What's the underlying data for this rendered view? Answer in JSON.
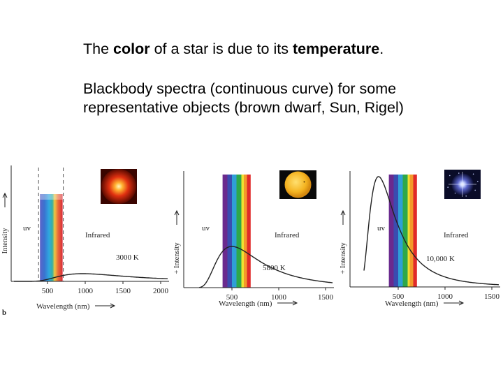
{
  "slide": {
    "line1": {
      "pre": "The ",
      "bold1": "color",
      "mid": " of a star is due to its ",
      "bold2": "temperature",
      "post": "."
    },
    "line2": "Blackbody spectra (continuous curve) for some",
    "line3": "representative objects (brown dwarf, Sun, Rigel)"
  },
  "chart_data": [
    {
      "type": "line",
      "xlabel": "Wavelength (nm)",
      "ylabel": "Intensity",
      "temperature_label": "3000 K",
      "region_labels": [
        "uv",
        "Infrared"
      ],
      "x_ticks": [
        500,
        1000,
        1500,
        2000
      ],
      "xlim": [
        0,
        2100
      ],
      "series": [
        {
          "temperature": 3000
        }
      ],
      "visible_band": [
        400,
        700
      ],
      "panel_label": "b",
      "star_image": "brown-dwarf-glow"
    },
    {
      "type": "line",
      "xlabel": "Wavelength (nm)",
      "ylabel": "+ Intensity",
      "temperature_label": "5800 K",
      "region_labels": [
        "uv",
        "Infrared"
      ],
      "x_ticks": [
        500,
        1000,
        1500
      ],
      "xlim": [
        0,
        1550
      ],
      "series": [
        {
          "temperature": 5800
        }
      ],
      "visible_band": [
        400,
        700
      ],
      "star_image": "sun-disk"
    },
    {
      "type": "line",
      "xlabel": "Wavelength (nm)",
      "ylabel": "+ Intensity",
      "temperature_label": "10,000 K",
      "region_labels": [
        "uv",
        "Infrared"
      ],
      "x_ticks": [
        500,
        1000,
        1500
      ],
      "xlim": [
        0,
        1550
      ],
      "series": [
        {
          "temperature": 10000
        }
      ],
      "visible_band": [
        400,
        700
      ],
      "star_image": "rigel-starfield"
    }
  ]
}
